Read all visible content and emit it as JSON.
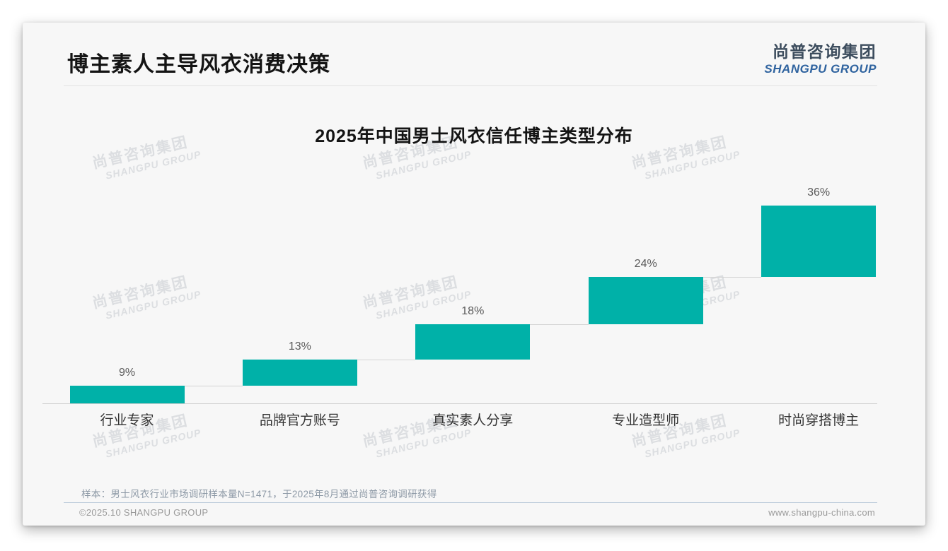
{
  "header": {
    "title": "博主素人主导风衣消费决策"
  },
  "logo": {
    "cn": "尚普咨询集团",
    "en": "SHANGPU GROUP",
    "cn_color": "#3d4d5e",
    "en_color": "#2f639f"
  },
  "watermark": {
    "cn": "尚普咨询集团",
    "en": "SHANGPU GROUP"
  },
  "chart_data": {
    "type": "bar",
    "subtype": "waterfall-steps",
    "title": "2025年中国男士风衣信任博主类型分布",
    "categories": [
      "行业专家",
      "品牌官方账号",
      "真实素人分享",
      "专业造型师",
      "时尚穿搭博主"
    ],
    "values": [
      9,
      13,
      18,
      24,
      36
    ],
    "labels": [
      "9%",
      "13%",
      "18%",
      "24%",
      "36%"
    ],
    "unit": "%",
    "ylim": [
      0,
      100
    ],
    "bar_color": "#00b1a8",
    "connector_color": "#d4d4d4",
    "grid": false,
    "legend": "none",
    "layout_hint": "each bar rises from the top of the previous bar (cumulative stair-step), cumulative total 100%"
  },
  "footnote": {
    "text": "样本：男士风衣行业市场调研样本量N=1471，于2025年8月通过尚普咨询调研获得"
  },
  "footer": {
    "left": "©2025.10 SHANGPU GROUP",
    "right": "www.shangpu-china.com"
  }
}
